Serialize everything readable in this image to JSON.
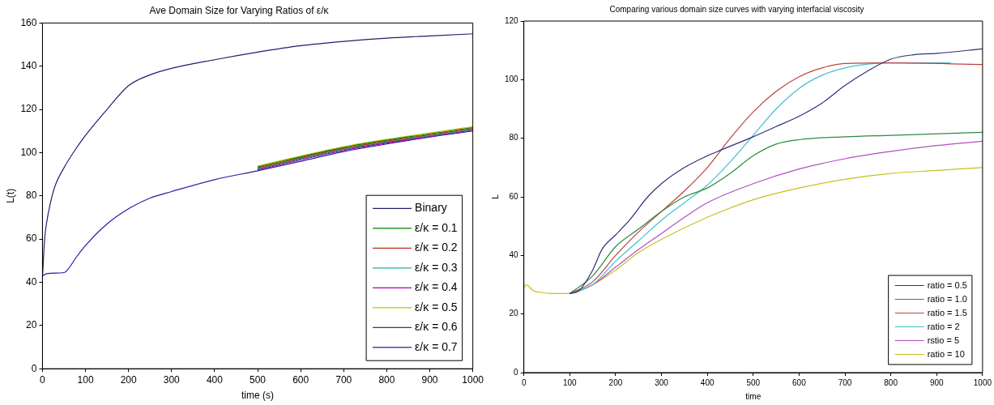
{
  "chart_data": [
    {
      "type": "line",
      "title": "Ave Domain Size for Varying Ratios of ε/κ",
      "xlabel": "time (s)",
      "ylabel": "L(t)",
      "xlim": [
        0,
        1000
      ],
      "ylim": [
        0,
        160
      ],
      "xticks": [
        0,
        100,
        200,
        300,
        400,
        500,
        600,
        700,
        800,
        900,
        1000
      ],
      "yticks": [
        0,
        20,
        40,
        60,
        80,
        100,
        120,
        140,
        160
      ],
      "grid": false,
      "legend": "bottom right",
      "marker": "none",
      "line_style": "solid",
      "series": [
        {
          "name": "Binary",
          "color": "#202070",
          "x": [
            0,
            5,
            10,
            20,
            30,
            50,
            75,
            100,
            150,
            200,
            250,
            300,
            400,
            500,
            600,
            700,
            800,
            900,
            1000
          ],
          "values": [
            42,
            60,
            68,
            78,
            85,
            93,
            101,
            108,
            120,
            131,
            136,
            139,
            143,
            146.5,
            149.5,
            151.5,
            153,
            154,
            155
          ]
        },
        {
          "name": "ε/κ = 0.1",
          "color": "#008000",
          "x": [
            500,
            700,
            1000
          ],
          "values": [
            93.4,
            102.4,
            111.6
          ]
        },
        {
          "name": "ε/κ = 0.2",
          "color": "#c03020",
          "x": [
            500,
            700,
            1000
          ],
          "values": [
            93,
            102,
            111.2
          ]
        },
        {
          "name": "ε/κ = 0.3",
          "color": "#20b0a0",
          "x": [
            500,
            700,
            1000
          ],
          "values": [
            92.7,
            101.7,
            110.8
          ]
        },
        {
          "name": "ε/κ = 0.4",
          "color": "#b000b0",
          "x": [
            500,
            700,
            1000
          ],
          "values": [
            92,
            101,
            110.4
          ]
        },
        {
          "name": "ε/κ = 0.5",
          "color": "#c8c000",
          "x": [
            500,
            700,
            1000
          ],
          "values": [
            93.8,
            102.8,
            112
          ]
        },
        {
          "name": "ε/κ = 0.6",
          "color": "#404040",
          "x": [
            500,
            700,
            1000
          ],
          "values": [
            92.4,
            101.4,
            110.6
          ]
        },
        {
          "name": "ε/κ = 0.7",
          "color": "#2020a0",
          "x": [
            0,
            10,
            50,
            55,
            80,
            100,
            150,
            200,
            250,
            300,
            400,
            500,
            600,
            700,
            800,
            900,
            1000
          ],
          "values": [
            43,
            44,
            44.5,
            45,
            52,
            57,
            67,
            74,
            79,
            82,
            87.5,
            91.6,
            96,
            100.5,
            104,
            107.2,
            110
          ]
        }
      ]
    },
    {
      "type": "line",
      "title": "Comparing various domain size curves with varying interfacial viscosity",
      "xlabel": "time",
      "ylabel": "L",
      "xlim": [
        0,
        1000
      ],
      "ylim": [
        0,
        120
      ],
      "xticks": [
        0,
        100,
        200,
        300,
        400,
        500,
        600,
        700,
        800,
        900,
        1000
      ],
      "yticks": [
        0,
        20,
        40,
        60,
        80,
        100,
        120
      ],
      "grid": false,
      "legend": "bottom right",
      "marker": "none",
      "line_style": "solid",
      "series": [
        {
          "name": "ratio = 0.5",
          "color": "#30307a",
          "x": [
            100,
            120,
            150,
            170,
            200,
            230,
            270,
            300,
            350,
            400,
            430,
            500,
            550,
            600,
            650,
            700,
            750,
            800,
            850,
            900,
            1000
          ],
          "values": [
            27,
            28,
            35,
            42,
            47,
            52,
            60,
            64.5,
            70,
            74,
            76,
            80.5,
            84,
            87.5,
            92,
            98,
            103,
            107,
            108.5,
            109,
            110.5
          ]
        },
        {
          "name": "ratio = 1.0",
          "color": "#2e8b3e",
          "x": [
            100,
            150,
            200,
            250,
            300,
            350,
            400,
            450,
            500,
            550,
            600,
            700,
            800,
            1000
          ],
          "values": [
            27,
            33,
            43,
            49,
            55,
            60,
            63,
            68,
            74,
            78,
            79.5,
            80.5,
            81,
            82
          ]
        },
        {
          "name": "ratio = 1.5",
          "color": "#c04040",
          "x": [
            100,
            150,
            200,
            250,
            300,
            350,
            400,
            450,
            500,
            550,
            600,
            650,
            700,
            800,
            1000
          ],
          "values": [
            27,
            31,
            40,
            48,
            55,
            62,
            70,
            80,
            89,
            96,
            101,
            104,
            105.5,
            105.7,
            105.2
          ]
        },
        {
          "name": "ratio = 2",
          "color": "#40c0d0",
          "x": [
            100,
            150,
            200,
            250,
            300,
            350,
            400,
            450,
            500,
            550,
            600,
            650,
            700,
            750,
            800,
            930
          ],
          "values": [
            27,
            30,
            38,
            45,
            52,
            58,
            64,
            72,
            81,
            90,
            97,
            101.5,
            104,
            105.3,
            105.7,
            105.7
          ]
        },
        {
          "name": "rstio = 5",
          "color": "#b050c0",
          "x": [
            100,
            150,
            200,
            250,
            300,
            350,
            400,
            500,
            600,
            700,
            800,
            900,
            1000
          ],
          "values": [
            27,
            30,
            36,
            42,
            47.5,
            53,
            58,
            64.5,
            69.5,
            73,
            75.5,
            77.5,
            79
          ]
        },
        {
          "name": "ratio = 10",
          "color": "#c8c020",
          "x": [
            0,
            5,
            10,
            20,
            40,
            60,
            100,
            150,
            200,
            250,
            300,
            400,
            500,
            600,
            700,
            800,
            900,
            1000
          ],
          "values": [
            29,
            30,
            29.5,
            28,
            27.3,
            27,
            27,
            30,
            35,
            41,
            45.5,
            53,
            59,
            63,
            66,
            68,
            69,
            70
          ]
        }
      ]
    }
  ]
}
